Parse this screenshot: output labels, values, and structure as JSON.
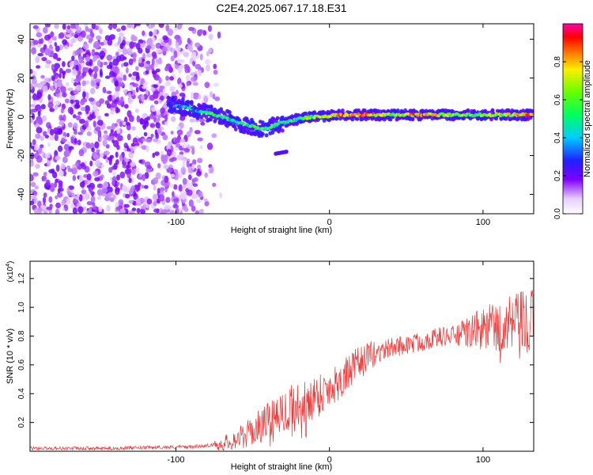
{
  "figure_title": "C2E4.2025.067.17.18.E31",
  "colors": {
    "snr_line": "#ee3333",
    "axis": "#000000",
    "background": "#ffffff"
  },
  "chart_data": [
    {
      "type": "heatmap",
      "title": "C2E4.2025.067.17.18.E31",
      "xlabel": "Height of straight line (km)",
      "ylabel": "Frequency (Hz)",
      "xlim": [
        -195,
        133
      ],
      "ylim": [
        -50,
        48
      ],
      "xticks": [
        -100,
        0,
        100
      ],
      "xtick_labels": [
        "-100",
        "0",
        "100"
      ],
      "yticks": [
        -40,
        -20,
        0,
        20,
        40
      ],
      "ytick_labels": [
        "-40",
        "-20",
        "0",
        "20",
        "40"
      ],
      "colormap": "rainbow (white-violet-blue-cyan-green-yellow-red-magenta)",
      "colorbar": {
        "label": "Normalized spectral amplitude",
        "range": [
          0,
          1
        ],
        "ticks": [
          0.0,
          0.2,
          0.4,
          0.6,
          0.8
        ],
        "tick_labels": [
          "0.0",
          "0.2",
          "0.4",
          "0.6",
          "0.8"
        ]
      },
      "ridge": {
        "x": [
          -100,
          -90,
          -80,
          -70,
          -60,
          -50,
          -45,
          -40,
          -35,
          -30,
          -25,
          -20,
          -10,
          0,
          10,
          20,
          40,
          60,
          80,
          100,
          120,
          130
        ],
        "freq": [
          6,
          4,
          2,
          0,
          -3,
          -5,
          -6,
          -6,
          -4,
          -3,
          -2,
          -1,
          0,
          0.5,
          1,
          1,
          1,
          1,
          1,
          1,
          1,
          1
        ],
        "amplitude": [
          0.35,
          0.4,
          0.45,
          0.5,
          0.5,
          0.5,
          0.55,
          0.55,
          0.55,
          0.5,
          0.5,
          0.55,
          0.6,
          0.75,
          0.8,
          0.85,
          0.6,
          0.85,
          0.6,
          0.6,
          0.7,
          0.85
        ]
      },
      "spur": {
        "x": [
          -35,
          -28
        ],
        "freq": [
          -19,
          -18
        ]
      },
      "noise_region": {
        "x": [
          -195,
          -75
        ],
        "freq": [
          -50,
          48
        ]
      },
      "grid": false
    },
    {
      "type": "line",
      "xlabel": "Height of straight line (km)",
      "ylabel": "SNR (10 * v/v)",
      "y_multiplier_label": "(x10",
      "y_multiplier_exponent": "4",
      "y_multiplier_suffix": ")",
      "xlim": [
        -195,
        133
      ],
      "ylim": [
        0,
        1.32
      ],
      "xticks": [
        -100,
        0,
        100
      ],
      "xtick_labels": [
        "-100",
        "0",
        "100"
      ],
      "yticks": [
        0.2,
        0.4,
        0.6,
        0.8,
        1.0,
        1.2
      ],
      "ytick_labels": [
        "0.2",
        "0.4",
        "0.6",
        "0.8",
        "1.0",
        "1.2"
      ],
      "series": [
        {
          "color": "#ee3333",
          "x": [
            -195,
            -180,
            -160,
            -140,
            -120,
            -100,
            -90,
            -80,
            -70,
            -65,
            -60,
            -55,
            -50,
            -45,
            -40,
            -35,
            -30,
            -25,
            -20,
            -15,
            -10,
            -5,
            0,
            5,
            10,
            15,
            20,
            25,
            30,
            35,
            40,
            45,
            50,
            55,
            60,
            65,
            70,
            75,
            80,
            85,
            90,
            95,
            100,
            105,
            110,
            115,
            120,
            125,
            130,
            133
          ],
          "y": [
            0.02,
            0.02,
            0.02,
            0.02,
            0.025,
            0.03,
            0.03,
            0.04,
            0.05,
            0.07,
            0.09,
            0.11,
            0.14,
            0.18,
            0.22,
            0.26,
            0.29,
            0.31,
            0.33,
            0.36,
            0.38,
            0.41,
            0.44,
            0.48,
            0.52,
            0.57,
            0.62,
            0.65,
            0.68,
            0.7,
            0.72,
            0.73,
            0.74,
            0.75,
            0.76,
            0.78,
            0.79,
            0.8,
            0.8,
            0.81,
            0.82,
            0.84,
            0.85,
            0.86,
            0.86,
            0.86,
            0.86,
            0.86,
            0.86,
            0.87
          ]
        }
      ],
      "grid": false
    }
  ]
}
